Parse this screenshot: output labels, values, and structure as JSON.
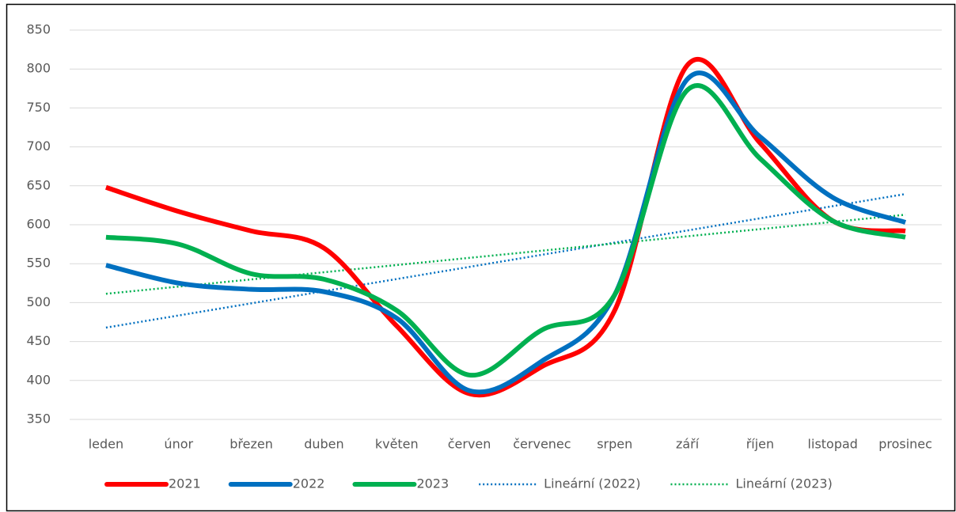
{
  "chart_data": {
    "type": "line",
    "categories": [
      "leden",
      "únor",
      "březen",
      "duben",
      "květen",
      "červen",
      "červenec",
      "srpen",
      "září",
      "říjen",
      "listopad",
      "prosinec"
    ],
    "series": [
      {
        "name": "2021",
        "color": "#ff0000",
        "values": [
          648,
          617,
          592,
          570,
          470,
          383,
          418,
          490,
          805,
          705,
          605,
          592
        ]
      },
      {
        "name": "2022",
        "color": "#0070c0",
        "values": [
          548,
          525,
          517,
          514,
          480,
          387,
          425,
          510,
          787,
          713,
          635,
          603
        ]
      },
      {
        "name": "2023",
        "color": "#00b050",
        "values": [
          584,
          575,
          537,
          530,
          490,
          407,
          465,
          510,
          773,
          685,
          605,
          584
        ]
      }
    ],
    "trendlines": [
      {
        "name": "Lineární (2022)",
        "of": "2022",
        "color": "#0070c0",
        "kind": "linear"
      },
      {
        "name": "Lineární (2023)",
        "of": "2023",
        "color": "#00b050",
        "kind": "linear"
      }
    ],
    "ylim": [
      350,
      850
    ],
    "yticks": [
      350,
      400,
      450,
      500,
      550,
      600,
      650,
      700,
      750,
      800,
      850
    ],
    "grid": true,
    "smooth": true,
    "legend": "bottom"
  }
}
